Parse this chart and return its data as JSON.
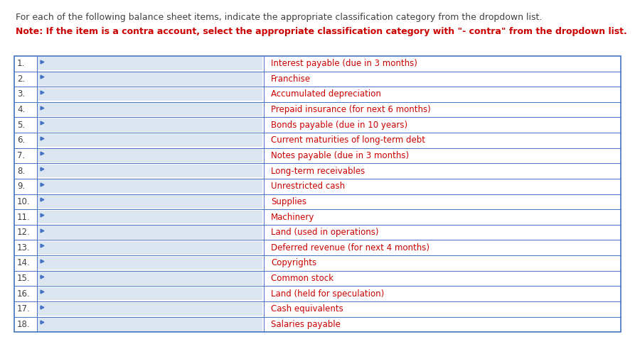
{
  "header_line1": "For each of the following balance sheet items, indicate the appropriate classification category from the dropdown list.",
  "header_line2": "Note: If the item is a contra account, select the appropriate classification category with \"- contra\" from the dropdown list.",
  "items": [
    "Interest payable (due in 3 months)",
    "Franchise",
    "Accumulated depreciation",
    "Prepaid insurance (for next 6 months)",
    "Bonds payable (due in 10 years)",
    "Current maturities of long-term debt",
    "Notes payable (due in 3 months)",
    "Long-term receivables",
    "Unrestricted cash",
    "Supplies",
    "Machinery",
    "Land (used in operations)",
    "Deferred revenue (for next 4 months)",
    "Copyrights",
    "Common stock",
    "Land (held for speculation)",
    "Cash equivalents",
    "Salaries payable"
  ],
  "bg_color": "#ffffff",
  "header1_color": "#404040",
  "header2_color": "#cc0000",
  "table_border_color": "#4472c4",
  "table_text_color": "#cc0000",
  "number_color": "#404040",
  "input_box_fill": "#dce6f1",
  "header1_fontsize": 9.0,
  "header2_fontsize": 9.0,
  "table_fontsize": 8.5
}
